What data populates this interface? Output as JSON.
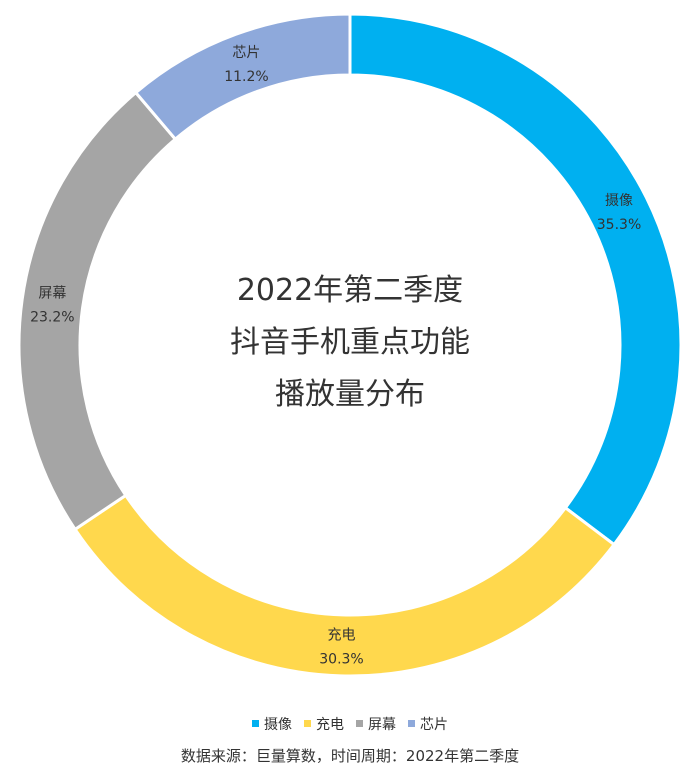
{
  "chart_data": {
    "type": "pie",
    "donut": true,
    "title_lines": [
      "2022年第二季度",
      "抖音手机重点功能",
      "播放量分布"
    ],
    "slices": [
      {
        "label": "摄像",
        "value": 35.3,
        "value_label": "35.3%",
        "color": "#00B0F0"
      },
      {
        "label": "充电",
        "value": 30.3,
        "value_label": "30.3%",
        "color": "#FFD84D"
      },
      {
        "label": "屏幕",
        "value": 23.2,
        "value_label": "23.2%",
        "color": "#A5A5A5"
      },
      {
        "label": "芯片",
        "value": 11.2,
        "value_label": "11.2%",
        "color": "#8EA9DB"
      }
    ],
    "legend_position": "bottom"
  },
  "source_note": "数据来源：巨量算数，时间周期：2022年第二季度"
}
